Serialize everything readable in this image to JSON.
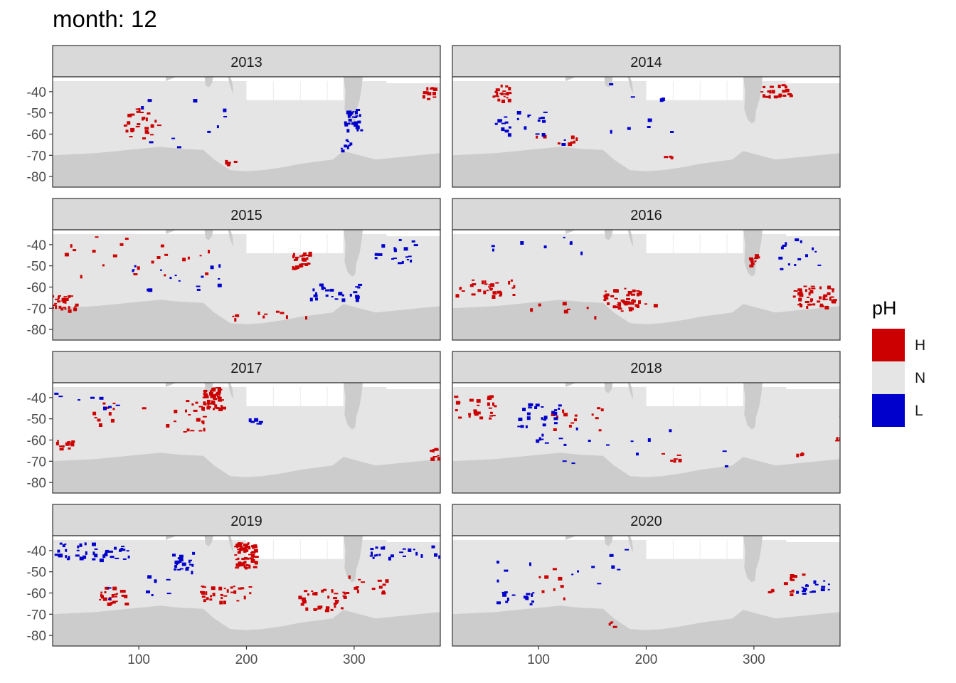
{
  "chart_data": {
    "type": "heatmap",
    "title": "month: 12",
    "xlabel": "",
    "ylabel": "",
    "xlim": [
      20,
      380
    ],
    "ylim": [
      -85,
      -33
    ],
    "x_ticks": [
      "100",
      "200",
      "300"
    ],
    "y_ticks": [
      "-40",
      "-50",
      "-60",
      "-70",
      "-80"
    ],
    "legend": {
      "title": "pH",
      "position": "right",
      "entries": [
        {
          "label": "H",
          "color": "#cc0000"
        },
        {
          "label": "N",
          "color": "#e5e5e5"
        },
        {
          "label": "L",
          "color": "#0000cc"
        }
      ]
    },
    "land_color": "#cccccc",
    "panels": [
      {
        "label": "2013",
        "blobs": [
          {
            "c": "H",
            "lon": 100,
            "lat": -55,
            "rx": 18,
            "ry": 8,
            "n": 26
          },
          {
            "c": "H",
            "lon": 370,
            "lat": -40,
            "rx": 8,
            "ry": 3,
            "n": 14
          },
          {
            "c": "H",
            "lon": 185,
            "lat": -73,
            "rx": 6,
            "ry": 1,
            "n": 5
          },
          {
            "c": "L",
            "lon": 298,
            "lat": -53,
            "rx": 8,
            "ry": 5,
            "n": 26
          },
          {
            "c": "L",
            "lon": 290,
            "lat": -65,
            "rx": 6,
            "ry": 3,
            "n": 8
          },
          {
            "c": "L",
            "lon": 140,
            "lat": -55,
            "rx": 40,
            "ry": 12,
            "n": 10
          }
        ]
      },
      {
        "label": "2014",
        "blobs": [
          {
            "c": "H",
            "lon": 65,
            "lat": -40,
            "rx": 8,
            "ry": 4,
            "n": 20
          },
          {
            "c": "H",
            "lon": 320,
            "lat": -39,
            "rx": 14,
            "ry": 3,
            "n": 22
          },
          {
            "c": "H",
            "lon": 115,
            "lat": -62,
            "rx": 25,
            "ry": 2,
            "n": 8
          },
          {
            "c": "H",
            "lon": 220,
            "lat": -70,
            "rx": 6,
            "ry": 1,
            "n": 4
          },
          {
            "c": "L",
            "lon": 80,
            "lat": -55,
            "rx": 25,
            "ry": 6,
            "n": 22
          },
          {
            "c": "L",
            "lon": 160,
            "lat": -50,
            "rx": 70,
            "ry": 15,
            "n": 12
          }
        ]
      },
      {
        "label": "2015",
        "blobs": [
          {
            "c": "H",
            "lon": 30,
            "lat": -67,
            "rx": 12,
            "ry": 4,
            "n": 30
          },
          {
            "c": "H",
            "lon": 250,
            "lat": -47,
            "rx": 8,
            "ry": 4,
            "n": 26
          },
          {
            "c": "H",
            "lon": 100,
            "lat": -45,
            "rx": 70,
            "ry": 10,
            "n": 22
          },
          {
            "c": "H",
            "lon": 220,
            "lat": -73,
            "rx": 40,
            "ry": 2,
            "n": 10
          },
          {
            "c": "L",
            "lon": 280,
            "lat": -62,
            "rx": 25,
            "ry": 4,
            "n": 26
          },
          {
            "c": "L",
            "lon": 335,
            "lat": -43,
            "rx": 25,
            "ry": 6,
            "n": 18
          },
          {
            "c": "L",
            "lon": 140,
            "lat": -55,
            "rx": 50,
            "ry": 6,
            "n": 16
          }
        ]
      },
      {
        "label": "2016",
        "blobs": [
          {
            "c": "H",
            "lon": 175,
            "lat": -65,
            "rx": 18,
            "ry": 5,
            "n": 48
          },
          {
            "c": "H",
            "lon": 355,
            "lat": -64,
            "rx": 20,
            "ry": 5,
            "n": 50
          },
          {
            "c": "H",
            "lon": 50,
            "lat": -60,
            "rx": 28,
            "ry": 4,
            "n": 30
          },
          {
            "c": "H",
            "lon": 300,
            "lat": -48,
            "rx": 6,
            "ry": 4,
            "n": 8
          },
          {
            "c": "H",
            "lon": 150,
            "lat": -70,
            "rx": 60,
            "ry": 4,
            "n": 10
          },
          {
            "c": "L",
            "lon": 340,
            "lat": -45,
            "rx": 20,
            "ry": 8,
            "n": 14
          },
          {
            "c": "L",
            "lon": 90,
            "lat": -40,
            "rx": 50,
            "ry": 4,
            "n": 8
          }
        ]
      },
      {
        "label": "2017",
        "blobs": [
          {
            "c": "H",
            "lon": 168,
            "lat": -40,
            "rx": 10,
            "ry": 5,
            "n": 60
          },
          {
            "c": "H",
            "lon": 150,
            "lat": -48,
            "rx": 10,
            "ry": 8,
            "n": 16
          },
          {
            "c": "H",
            "lon": 30,
            "lat": -62,
            "rx": 8,
            "ry": 2,
            "n": 12
          },
          {
            "c": "H",
            "lon": 375,
            "lat": -66,
            "rx": 5,
            "ry": 3,
            "n": 10
          },
          {
            "c": "H",
            "lon": 100,
            "lat": -50,
            "rx": 50,
            "ry": 8,
            "n": 14
          },
          {
            "c": "L",
            "lon": 200,
            "lat": -51,
            "rx": 12,
            "ry": 2,
            "n": 6
          },
          {
            "c": "L",
            "lon": 50,
            "lat": -42,
            "rx": 30,
            "ry": 6,
            "n": 8
          }
        ]
      },
      {
        "label": "2018",
        "blobs": [
          {
            "c": "H",
            "lon": 40,
            "lat": -44,
            "rx": 20,
            "ry": 6,
            "n": 28
          },
          {
            "c": "H",
            "lon": 135,
            "lat": -50,
            "rx": 25,
            "ry": 6,
            "n": 14
          },
          {
            "c": "H",
            "lon": 220,
            "lat": -68,
            "rx": 15,
            "ry": 2,
            "n": 6
          },
          {
            "c": "H",
            "lon": 345,
            "lat": -66,
            "rx": 6,
            "ry": 1,
            "n": 4
          },
          {
            "c": "H",
            "lon": 375,
            "lat": -55,
            "rx": 6,
            "ry": 8,
            "n": 5
          },
          {
            "c": "L",
            "lon": 100,
            "lat": -52,
            "rx": 20,
            "ry": 10,
            "n": 30
          },
          {
            "c": "L",
            "lon": 200,
            "lat": -60,
            "rx": 80,
            "ry": 12,
            "n": 12
          }
        ]
      },
      {
        "label": "2019",
        "blobs": [
          {
            "c": "H",
            "lon": 198,
            "lat": -42,
            "rx": 10,
            "ry": 6,
            "n": 70
          },
          {
            "c": "H",
            "lon": 180,
            "lat": -60,
            "rx": 25,
            "ry": 4,
            "n": 30
          },
          {
            "c": "H",
            "lon": 270,
            "lat": -63,
            "rx": 22,
            "ry": 5,
            "n": 36
          },
          {
            "c": "H",
            "lon": 75,
            "lat": -61,
            "rx": 12,
            "ry": 4,
            "n": 22
          },
          {
            "c": "H",
            "lon": 310,
            "lat": -55,
            "rx": 20,
            "ry": 5,
            "n": 14
          },
          {
            "c": "L",
            "lon": 55,
            "lat": -40,
            "rx": 35,
            "ry": 4,
            "n": 40
          },
          {
            "c": "L",
            "lon": 140,
            "lat": -45,
            "rx": 10,
            "ry": 5,
            "n": 22
          },
          {
            "c": "L",
            "lon": 345,
            "lat": -40,
            "rx": 35,
            "ry": 3,
            "n": 22
          },
          {
            "c": "L",
            "lon": 100,
            "lat": -57,
            "rx": 30,
            "ry": 6,
            "n": 8
          }
        ]
      },
      {
        "label": "2020",
        "blobs": [
          {
            "c": "H",
            "lon": 330,
            "lat": -55,
            "rx": 18,
            "ry": 6,
            "n": 14
          },
          {
            "c": "H",
            "lon": 110,
            "lat": -55,
            "rx": 15,
            "ry": 8,
            "n": 8
          },
          {
            "c": "H",
            "lon": 170,
            "lat": -75,
            "rx": 5,
            "ry": 3,
            "n": 4
          },
          {
            "c": "L",
            "lon": 80,
            "lat": -62,
            "rx": 20,
            "ry": 3,
            "n": 14
          },
          {
            "c": "L",
            "lon": 355,
            "lat": -57,
            "rx": 20,
            "ry": 3,
            "n": 16
          },
          {
            "c": "L",
            "lon": 120,
            "lat": -48,
            "rx": 60,
            "ry": 10,
            "n": 12
          }
        ]
      }
    ]
  }
}
